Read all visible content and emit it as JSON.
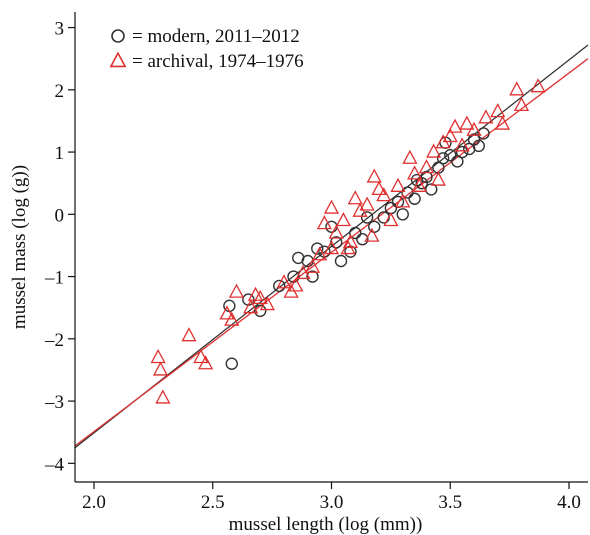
{
  "chart_data": {
    "type": "scatter",
    "xlabel": "mussel length (log (mm))",
    "ylabel": "mussel mass (log (g))",
    "xlim": [
      1.92,
      4.08
    ],
    "ylim": [
      -4.3,
      3.25
    ],
    "xticks": [
      "2.0",
      "2.5",
      "3.0",
      "3.5",
      "4.0"
    ],
    "yticks": [
      "–4",
      "–3",
      "–2",
      "–1",
      "0",
      "1",
      "2",
      "3"
    ],
    "grid": false,
    "legend_position": "top-left",
    "colors": {
      "modern": "#333333",
      "archival": "#e03030",
      "axis": "#111111"
    },
    "legend": [
      {
        "symbol": "O",
        "text": "= modern, 2011–2012"
      },
      {
        "symbol": "Δ",
        "text": "= archival, 1974–1976"
      }
    ],
    "series": [
      {
        "name": "modern, 2011–2012",
        "marker": "circle",
        "color": "#333333",
        "points": [
          [
            2.57,
            -1.47
          ],
          [
            2.58,
            -2.4
          ],
          [
            2.65,
            -1.37
          ],
          [
            2.7,
            -1.55
          ],
          [
            2.78,
            -1.15
          ],
          [
            2.84,
            -1.0
          ],
          [
            2.86,
            -0.7
          ],
          [
            2.9,
            -0.75
          ],
          [
            2.94,
            -0.55
          ],
          [
            2.97,
            -0.6
          ],
          [
            3.02,
            -0.45
          ],
          [
            3.04,
            -0.75
          ],
          [
            3.08,
            -0.6
          ],
          [
            3.1,
            -0.3
          ],
          [
            3.13,
            -0.4
          ],
          [
            3.15,
            -0.05
          ],
          [
            3.18,
            -0.2
          ],
          [
            3.22,
            -0.05
          ],
          [
            3.25,
            0.1
          ],
          [
            3.28,
            0.2
          ],
          [
            3.3,
            0.0
          ],
          [
            3.32,
            0.35
          ],
          [
            3.35,
            0.25
          ],
          [
            3.38,
            0.5
          ],
          [
            3.4,
            0.6
          ],
          [
            3.42,
            0.4
          ],
          [
            3.45,
            0.75
          ],
          [
            3.47,
            0.9
          ],
          [
            3.48,
            1.15
          ],
          [
            3.5,
            0.95
          ],
          [
            3.53,
            0.85
          ],
          [
            3.55,
            1.0
          ],
          [
            3.58,
            1.05
          ],
          [
            3.6,
            1.2
          ],
          [
            3.62,
            1.1
          ],
          [
            3.64,
            1.3
          ],
          [
            3.0,
            -0.2
          ],
          [
            2.92,
            -1.0
          ],
          [
            3.36,
            0.55
          ]
        ]
      },
      {
        "name": "archival, 1974–1976",
        "marker": "triangle",
        "color": "#e03030",
        "points": [
          [
            2.27,
            -2.3
          ],
          [
            2.28,
            -2.5
          ],
          [
            2.29,
            -2.95
          ],
          [
            2.4,
            -1.95
          ],
          [
            2.45,
            -2.3
          ],
          [
            2.47,
            -2.4
          ],
          [
            2.56,
            -1.6
          ],
          [
            2.58,
            -1.7
          ],
          [
            2.6,
            -1.25
          ],
          [
            2.66,
            -1.5
          ],
          [
            2.68,
            -1.3
          ],
          [
            2.7,
            -1.35
          ],
          [
            2.73,
            -1.45
          ],
          [
            2.8,
            -1.1
          ],
          [
            2.83,
            -1.25
          ],
          [
            2.85,
            -1.15
          ],
          [
            2.88,
            -0.95
          ],
          [
            2.92,
            -0.85
          ],
          [
            2.95,
            -0.65
          ],
          [
            3.0,
            -0.55
          ],
          [
            3.0,
            0.1
          ],
          [
            3.02,
            -0.3
          ],
          [
            3.05,
            -0.1
          ],
          [
            3.07,
            -0.55
          ],
          [
            3.1,
            0.25
          ],
          [
            3.12,
            0.05
          ],
          [
            3.15,
            0.15
          ],
          [
            3.17,
            -0.35
          ],
          [
            3.2,
            0.4
          ],
          [
            3.22,
            0.3
          ],
          [
            3.25,
            -0.1
          ],
          [
            3.28,
            0.45
          ],
          [
            3.3,
            0.2
          ],
          [
            3.33,
            0.9
          ],
          [
            3.35,
            0.65
          ],
          [
            3.37,
            0.45
          ],
          [
            3.4,
            0.75
          ],
          [
            3.43,
            1.0
          ],
          [
            3.45,
            0.55
          ],
          [
            3.5,
            1.25
          ],
          [
            3.52,
            1.4
          ],
          [
            3.55,
            1.1
          ],
          [
            3.57,
            1.45
          ],
          [
            3.6,
            1.35
          ],
          [
            3.65,
            1.55
          ],
          [
            3.7,
            1.65
          ],
          [
            3.72,
            1.45
          ],
          [
            3.78,
            2.0
          ],
          [
            3.8,
            1.75
          ],
          [
            3.87,
            2.05
          ],
          [
            2.97,
            -0.15
          ],
          [
            3.08,
            -0.45
          ],
          [
            3.18,
            0.6
          ],
          [
            3.47,
            1.15
          ]
        ]
      }
    ],
    "fit_lines": [
      {
        "name": "modern, 2011–2012",
        "color": "#333333",
        "x": [
          1.92,
          4.08
        ],
        "y": [
          -3.75,
          2.72
        ]
      },
      {
        "name": "archival, 1974–1976",
        "color": "#e03030",
        "x": [
          1.92,
          4.08
        ],
        "y": [
          -3.72,
          2.5
        ]
      }
    ]
  }
}
